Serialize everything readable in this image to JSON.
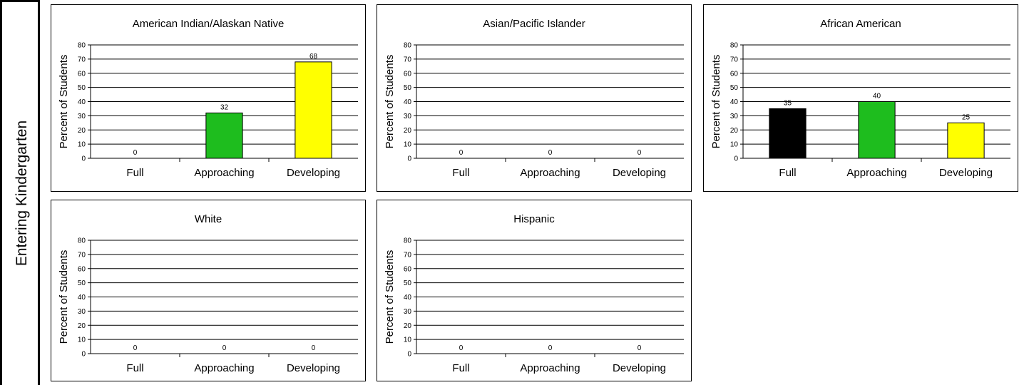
{
  "side_label": "Entering Kindergarten",
  "colors": {
    "Full": "#000000",
    "Approaching": "#1ebd1e",
    "Developing": "#ffff00"
  },
  "chart_data": [
    {
      "type": "bar",
      "title": "American Indian/Alaskan Native",
      "ylabel": "Percent of Students",
      "categories": [
        "Full",
        "Approaching",
        "Developing"
      ],
      "values": [
        0,
        32,
        68
      ],
      "data_labels": [
        "0",
        "32",
        "68"
      ],
      "ylim": [
        0,
        80
      ],
      "yticks": [
        "0",
        "10",
        "20",
        "30",
        "40",
        "50",
        "60",
        "70",
        "80"
      ],
      "grid": true
    },
    {
      "type": "bar",
      "title": "Asian/Pacific Islander",
      "ylabel": "Percent of Students",
      "categories": [
        "Full",
        "Approaching",
        "Developing"
      ],
      "values": [
        0,
        0,
        0
      ],
      "data_labels": [
        "0",
        "0",
        "0"
      ],
      "ylim": [
        0,
        80
      ],
      "yticks": [
        "0",
        "10",
        "20",
        "30",
        "40",
        "50",
        "60",
        "70",
        "80"
      ],
      "grid": true
    },
    {
      "type": "bar",
      "title": "African American",
      "ylabel": "Percent of Students",
      "categories": [
        "Full",
        "Approaching",
        "Developing"
      ],
      "values": [
        35,
        40,
        25
      ],
      "data_labels": [
        "35",
        "40",
        "25"
      ],
      "ylim": [
        0,
        80
      ],
      "yticks": [
        "0",
        "10",
        "20",
        "30",
        "40",
        "50",
        "60",
        "70",
        "80"
      ],
      "grid": true
    },
    {
      "type": "bar",
      "title": "White",
      "ylabel": "Percent of Students",
      "categories": [
        "Full",
        "Approaching",
        "Developing"
      ],
      "values": [
        0,
        0,
        0
      ],
      "data_labels": [
        "0",
        "0",
        "0"
      ],
      "ylim": [
        0,
        80
      ],
      "yticks": [
        "0",
        "10",
        "20",
        "30",
        "40",
        "50",
        "60",
        "70",
        "80"
      ],
      "grid": true
    },
    {
      "type": "bar",
      "title": "Hispanic",
      "ylabel": "Percent of Students",
      "categories": [
        "Full",
        "Approaching",
        "Developing"
      ],
      "values": [
        0,
        0,
        0
      ],
      "data_labels": [
        "0",
        "0",
        "0"
      ],
      "ylim": [
        0,
        80
      ],
      "yticks": [
        "0",
        "10",
        "20",
        "30",
        "40",
        "50",
        "60",
        "70",
        "80"
      ],
      "grid": true
    }
  ]
}
